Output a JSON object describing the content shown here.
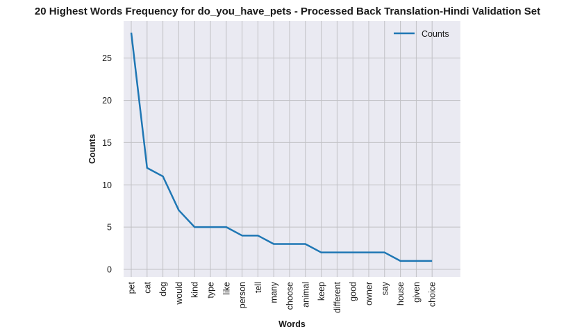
{
  "chart_data": {
    "type": "line",
    "title": "20 Highest Words Frequency for do_you_have_pets - Processed Back Translation-Hindi Validation Set",
    "xlabel": "Words",
    "ylabel": "Counts",
    "categories": [
      "pet",
      "cat",
      "dog",
      "would",
      "kind",
      "type",
      "like",
      "person",
      "tell",
      "many",
      "choose",
      "animal",
      "keep",
      "different",
      "good",
      "owner",
      "say",
      "house",
      "given",
      "choice"
    ],
    "series": [
      {
        "name": "Counts",
        "values": [
          28,
          12,
          11,
          7,
          5,
          5,
          5,
          4,
          4,
          3,
          3,
          3,
          2,
          2,
          2,
          2,
          2,
          1,
          1,
          1
        ]
      }
    ],
    "yticks": [
      0,
      5,
      10,
      15,
      20,
      25
    ],
    "ylim": [
      -0.9,
      29.4
    ],
    "grid": true,
    "legend": "top-right",
    "colors": {
      "line": "#1f77b4",
      "plot_bg": "#eaeaf2",
      "grid": "#c0c0c4"
    }
  }
}
